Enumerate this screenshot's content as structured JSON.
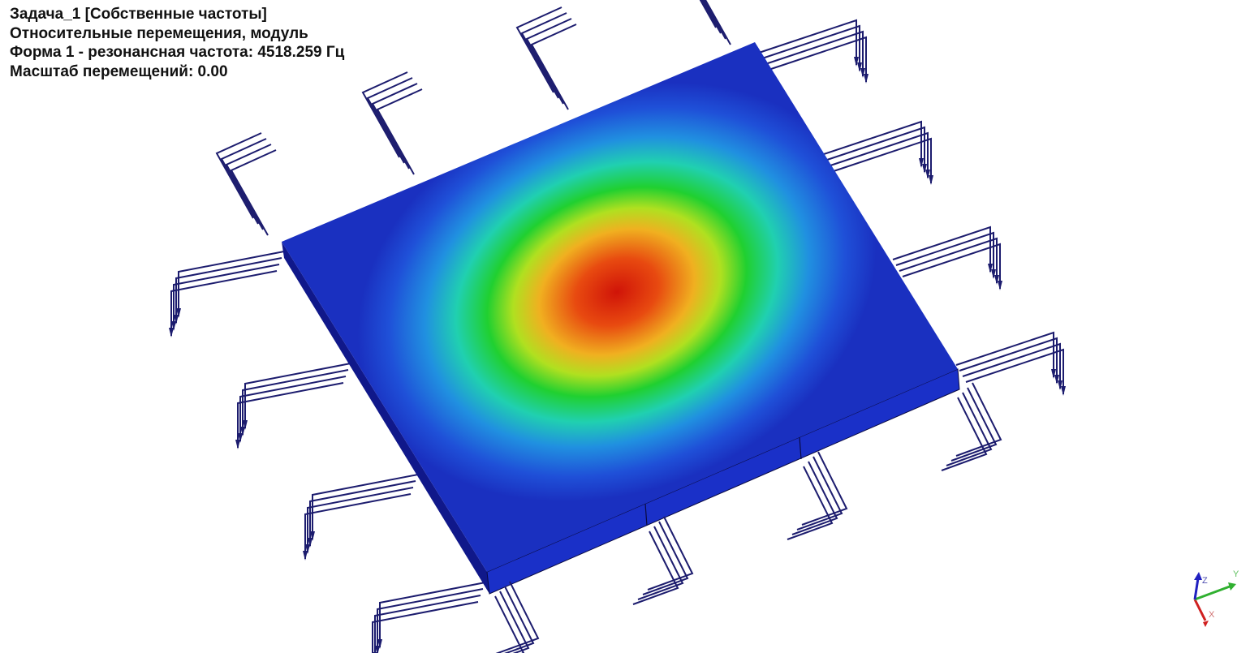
{
  "info": {
    "task_title": "Задача_1 [Собственные частоты]",
    "result_type": "Относительные перемещения, модуль",
    "mode_label": "Форма 1 - резонансная частота: 4518.259 Гц",
    "displacement_scale": "Масштаб перемещений: 0.00"
  },
  "triad": {
    "x": "X",
    "y": "Y",
    "z": "Z"
  },
  "colors": {
    "plate_edge": "#1a2fc0",
    "support": "#1c1c6e",
    "contour": [
      "#d01a10",
      "#f07010",
      "#e8e020",
      "#30d020",
      "#20d0c0",
      "#2080e0",
      "#1a30c0"
    ],
    "axis_x": "#d02020",
    "axis_y": "#30b030",
    "axis_z": "#2020c0"
  }
}
